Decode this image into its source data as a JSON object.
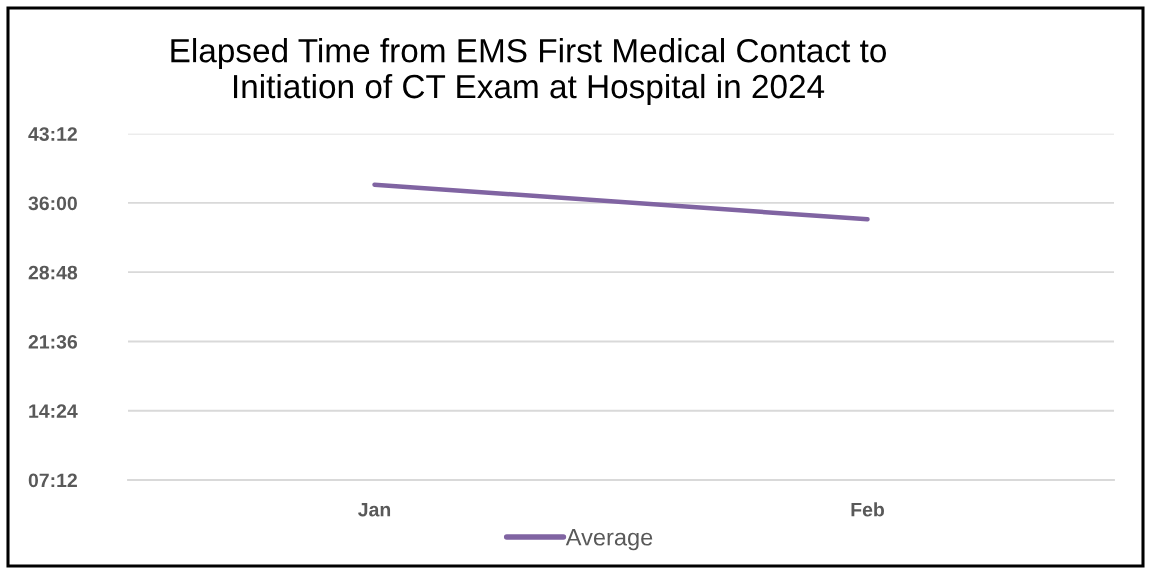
{
  "chart_data": {
    "type": "line",
    "title": "Elapsed Time from EMS First Medical Contact to\nInitiation of CT Exam at Hospital in 2024",
    "categories": [
      "Jan",
      "Feb"
    ],
    "series": [
      {
        "name": "Average",
        "color": "#8064a2",
        "values": [
          37.9,
          34.3
        ]
      }
    ],
    "ylim": [
      7.2,
      43.2
    ],
    "yticks": [
      {
        "value": 7.2,
        "label": "07:12"
      },
      {
        "value": 14.4,
        "label": "14:24"
      },
      {
        "value": 21.6,
        "label": "21:36"
      },
      {
        "value": 28.8,
        "label": "28:48"
      },
      {
        "value": 36,
        "label": "36:00"
      },
      {
        "value": 43.2,
        "label": "43:12"
      }
    ],
    "grid": "y",
    "legend": "bottom",
    "marker": "none",
    "line_style": "solid"
  }
}
